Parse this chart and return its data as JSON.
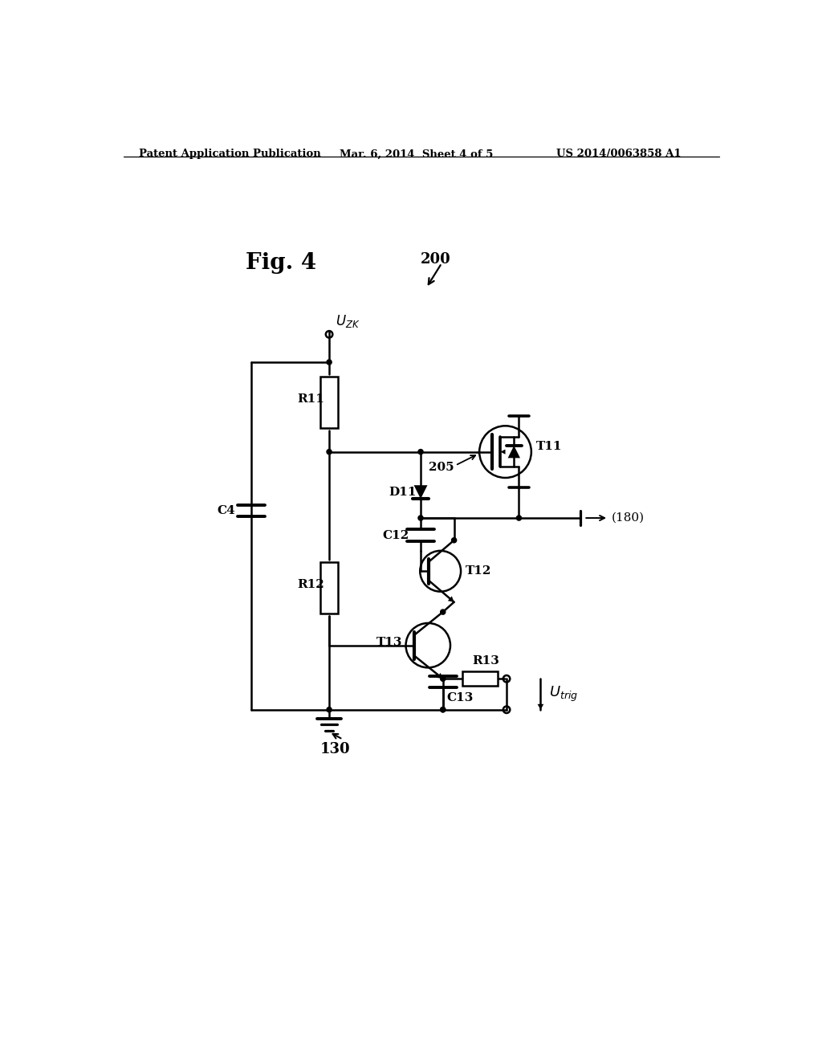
{
  "bg_color": "#ffffff",
  "header_left": "Patent Application Publication",
  "header_mid": "Mar. 6, 2014  Sheet 4 of 5",
  "header_right": "US 2014/0063858 A1",
  "fig_label": "Fig. 4",
  "ref_200": "200",
  "ref_130": "130",
  "ref_180": "(180)",
  "ref_205": "205",
  "label_uzk": "$U_{ZK}$",
  "label_utrig": "$U_{trig}$",
  "label_r11": "R11",
  "label_r12": "R12",
  "label_r13": "R13",
  "label_c4": "C4",
  "label_c12": "C12",
  "label_c13": "C13",
  "label_d11": "D11",
  "label_t11": "T11",
  "label_t12": "T12",
  "label_t13": "T13"
}
